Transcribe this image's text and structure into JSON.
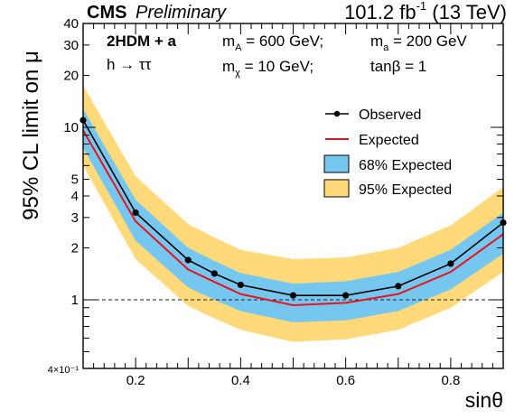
{
  "header": {
    "experiment": "CMS",
    "status": "Preliminary",
    "lumi_value": "101.2 fb",
    "lumi_exp": "-1",
    "lumi_energy": " (13 TeV)"
  },
  "model": {
    "name": "2HDM + a",
    "channel": "h → ττ",
    "params": [
      "600 GeV;",
      "200 GeV",
      "10 GeV;",
      "tanβ = 1"
    ]
  },
  "chart_data": {
    "type": "line",
    "xlabel": "sinθ",
    "ylabel": "95% CL limit on μ",
    "xlim": [
      0.1,
      0.9
    ],
    "ylim": [
      0.4,
      40
    ],
    "yscale": "log",
    "x_ticks": [
      "0.2",
      "0.4",
      "0.6",
      "0.8"
    ],
    "y_ticks": [
      "4×10⁻¹",
      "1",
      "2",
      "3",
      "4",
      "5",
      "10",
      "20",
      "30",
      "40"
    ],
    "reference_line": 1,
    "grid": false,
    "legend_position": "right",
    "observed": {
      "name": "Observed",
      "color": "#000000",
      "x": [
        0.1,
        0.2,
        0.3,
        0.35,
        0.4,
        0.5,
        0.6,
        0.7,
        0.8,
        0.9
      ],
      "y": [
        11.0,
        3.2,
        1.7,
        1.42,
        1.22,
        1.06,
        1.06,
        1.2,
        1.62,
        2.8
      ]
    },
    "expected": {
      "name": "Expected",
      "color": "#e8141c",
      "x": [
        0.1,
        0.2,
        0.3,
        0.35,
        0.4,
        0.5,
        0.6,
        0.7,
        0.8,
        0.9
      ],
      "y": [
        9.6,
        2.85,
        1.5,
        1.27,
        1.08,
        0.93,
        0.96,
        1.08,
        1.45,
        2.4
      ]
    },
    "band68": {
      "name": "68% Expected",
      "color": "#76c7f0",
      "x": [
        0.1,
        0.2,
        0.3,
        0.35,
        0.4,
        0.5,
        0.6,
        0.7,
        0.8,
        0.9
      ],
      "low": [
        7.6,
        2.2,
        1.18,
        1.0,
        0.86,
        0.74,
        0.76,
        0.86,
        1.15,
        1.85
      ],
      "high": [
        12.8,
        3.8,
        2.0,
        1.68,
        1.43,
        1.24,
        1.28,
        1.45,
        1.95,
        3.2
      ]
    },
    "band95": {
      "name": "95% Expected",
      "color": "#ffd97a",
      "x": [
        0.1,
        0.2,
        0.3,
        0.35,
        0.4,
        0.5,
        0.6,
        0.7,
        0.8,
        0.9
      ],
      "low": [
        6.0,
        1.72,
        0.92,
        0.78,
        0.67,
        0.57,
        0.59,
        0.67,
        0.9,
        1.45
      ],
      "high": [
        17.5,
        5.2,
        2.75,
        2.3,
        1.95,
        1.72,
        1.76,
        2.0,
        2.7,
        4.5
      ]
    }
  }
}
